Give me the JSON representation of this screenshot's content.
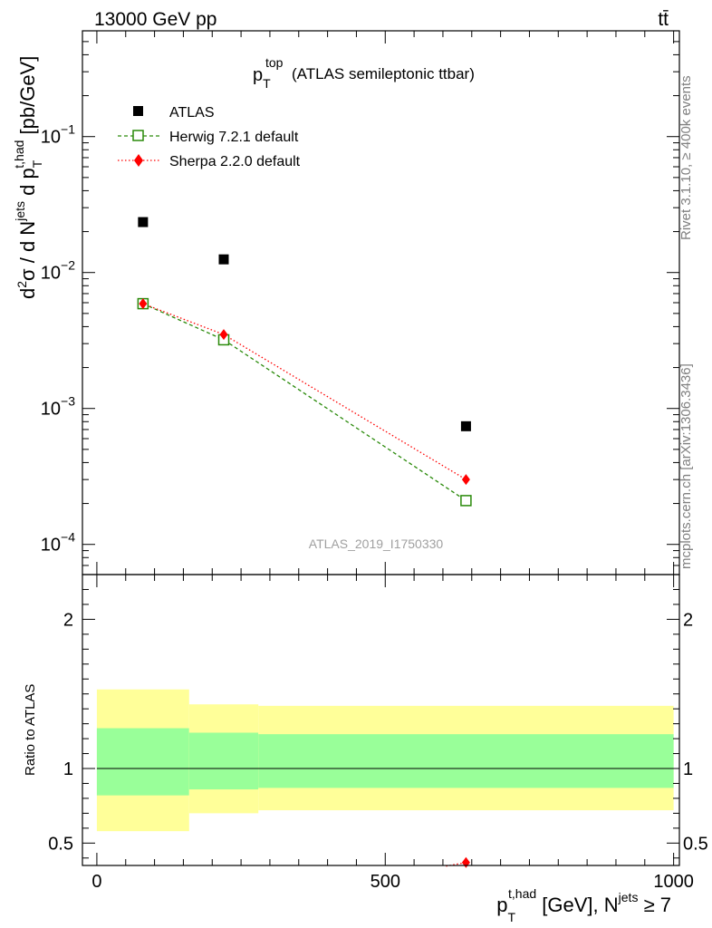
{
  "header": {
    "energy_label": "13000 GeV pp",
    "process_label": "tt̄"
  },
  "side_labels": {
    "rivet": "Rivet 3.1.10, ≥ 400k events",
    "mcplots": "mcplots.cern.ch [arXiv:1306.3436]"
  },
  "chart_data": [
    {
      "type": "scatter",
      "panel": "main",
      "title": {
        "main": "p",
        "sub": "T",
        "sup": "top",
        "rest": " (ATLAS semileptonic ttbar)"
      },
      "ylabel": {
        "p1": "d",
        "p1sup": "2",
        "p2": "σ / d N",
        "p2sup": "jets",
        "p3": " d p",
        "p3sup": "t,had",
        "p3sub": "T",
        "p4": " [pb/GeV]"
      },
      "yscale": "log",
      "ylim": [
        6e-05,
        0.6
      ],
      "xlim": [
        -25,
        1010
      ],
      "yticks": [
        {
          "v": 0.1,
          "base": "10",
          "exp": "−1"
        },
        {
          "v": 0.01,
          "base": "10",
          "exp": "−2"
        },
        {
          "v": 0.001,
          "base": "10",
          "exp": "−3"
        },
        {
          "v": 0.0001,
          "base": "10",
          "exp": "−4"
        }
      ],
      "legend_position": "top-left",
      "watermark": "ATLAS_2019_I1750330",
      "series": [
        {
          "name": "ATLAS",
          "style": "data",
          "color": "#000000",
          "x": [
            80,
            220,
            640
          ],
          "y": [
            0.0235,
            0.0125,
            0.00074
          ]
        },
        {
          "name": "Herwig 7.2.1 default",
          "style": "open-square-dashed",
          "color": "#2a8a0a",
          "x": [
            80,
            220,
            640
          ],
          "y": [
            0.0059,
            0.0032,
            0.00021
          ]
        },
        {
          "name": "Sherpa 2.2.0 default",
          "style": "diamond-dotted",
          "color": "#ff0000",
          "x": [
            80,
            220,
            640
          ],
          "y": [
            0.0059,
            0.0035,
            0.0003
          ]
        }
      ]
    },
    {
      "type": "scatter",
      "panel": "ratio",
      "ylabel": "Ratio to ATLAS",
      "ylim": [
        0.35,
        2.3
      ],
      "yticks": [
        0.5,
        1,
        2
      ],
      "xticks": [
        0,
        500,
        1000
      ],
      "xlabel": {
        "p": "p",
        "sup": "t,had",
        "sub": "T",
        "rest": " [GeV], N",
        "jsup": "jets",
        "tail": " ≥ 7"
      },
      "bands": [
        {
          "x0": 0,
          "x1": 160,
          "yellow": [
            0.58,
            1.53
          ],
          "green": [
            0.82,
            1.27
          ]
        },
        {
          "x0": 160,
          "x1": 280,
          "yellow": [
            0.7,
            1.43
          ],
          "green": [
            0.86,
            1.24
          ]
        },
        {
          "x0": 280,
          "x1": 1000,
          "yellow": [
            0.72,
            1.42
          ],
          "green": [
            0.87,
            1.23
          ]
        }
      ],
      "band_colors": {
        "yellow": "#ffff99",
        "green": "#99ff99"
      },
      "series": [
        {
          "name": "Sherpa 2.2.0 default",
          "color": "#ff0000",
          "x": [
            640
          ],
          "y": [
            0.37
          ]
        }
      ]
    }
  ]
}
